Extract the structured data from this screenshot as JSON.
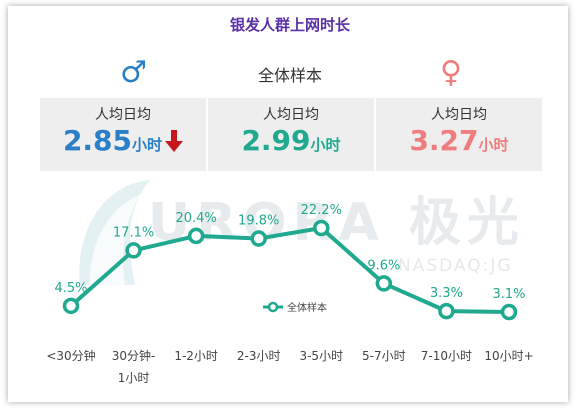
{
  "title": "银发人群上网时长",
  "center_label": "全体样本",
  "symbols": {
    "male": "♂",
    "female": "♀"
  },
  "icons": {
    "down_arrow": "down-arrow-icon"
  },
  "watermark": {
    "main": "URORA 极光",
    "sub": "NASDAQ:JG"
  },
  "stat_boxes": [
    {
      "label": "人均日均",
      "value": "2.85",
      "unit": "小时",
      "color": "#2a7fc6"
    },
    {
      "label": "人均日均",
      "value": "2.99",
      "unit": "小时",
      "color": "#1fa98f"
    },
    {
      "label": "人均日均",
      "value": "3.27",
      "unit": "小时",
      "color": "#ef7d7d"
    }
  ],
  "chart_data": {
    "type": "line",
    "categories": [
      "<30分钟",
      "30分钟-1小时",
      "1-2小时",
      "2-3小时",
      "3-5小时",
      "5-7小时",
      "7-10小时",
      "10小时+"
    ],
    "series": [
      {
        "name": "全体样本",
        "values": [
          4.5,
          17.1,
          20.4,
          19.8,
          22.2,
          9.6,
          3.3,
          3.1
        ],
        "color": "#1fa98f"
      }
    ],
    "value_labels": [
      "4.5%",
      "17.1%",
      "20.4%",
      "19.8%",
      "22.2%",
      "9.6%",
      "3.3%",
      "3.1%"
    ],
    "legend_position": "center",
    "grid": false
  }
}
